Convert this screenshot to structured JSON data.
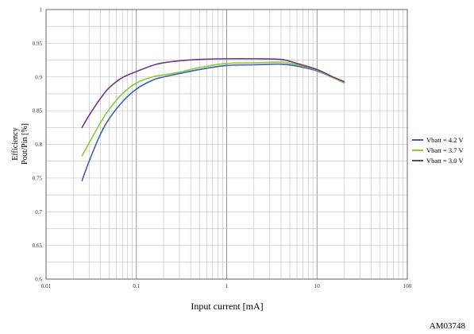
{
  "chart_data": {
    "type": "line",
    "xlabel": "Input current   [mA]",
    "ylabel_lines": [
      "Efficiency",
      "Pout/Pin [%]"
    ],
    "x_scale": "log",
    "xlim": [
      0.01,
      100
    ],
    "ylim": [
      0.6,
      1
    ],
    "x_ticks": [
      0.01,
      0.1,
      1,
      10,
      100
    ],
    "x_tick_labels": [
      "0.01",
      "0.1",
      "1",
      "10",
      "100"
    ],
    "y_ticks": [
      0.6,
      0.65,
      0.7,
      0.75,
      0.8,
      0.85,
      0.9,
      0.95,
      1
    ],
    "y_tick_labels": [
      "0.6",
      "0.65",
      "0.7",
      "0.75",
      "0.8",
      "0.85",
      "0.9",
      "0.95",
      "1"
    ],
    "grid": true,
    "legend_position": "right",
    "code": "AM03748",
    "series": [
      {
        "name": "Vbatt = 4.2 V",
        "color": "#3f5fa8",
        "points": [
          [
            0.025,
            0.746
          ],
          [
            0.03,
            0.775
          ],
          [
            0.04,
            0.815
          ],
          [
            0.05,
            0.838
          ],
          [
            0.07,
            0.863
          ],
          [
            0.1,
            0.882
          ],
          [
            0.15,
            0.895
          ],
          [
            0.2,
            0.9
          ],
          [
            0.3,
            0.905
          ],
          [
            0.5,
            0.911
          ],
          [
            1,
            0.917
          ],
          [
            2,
            0.918
          ],
          [
            4,
            0.919
          ],
          [
            6,
            0.916
          ],
          [
            10,
            0.909
          ],
          [
            15,
            0.899
          ],
          [
            20,
            0.892
          ]
        ]
      },
      {
        "name": "Vbatt = 3.7 V",
        "color": "#8dc63f",
        "points": [
          [
            0.025,
            0.783
          ],
          [
            0.03,
            0.802
          ],
          [
            0.04,
            0.832
          ],
          [
            0.05,
            0.852
          ],
          [
            0.07,
            0.875
          ],
          [
            0.1,
            0.891
          ],
          [
            0.15,
            0.9
          ],
          [
            0.2,
            0.903
          ],
          [
            0.3,
            0.907
          ],
          [
            0.5,
            0.914
          ],
          [
            1,
            0.92
          ],
          [
            2,
            0.921
          ],
          [
            4,
            0.922
          ],
          [
            6,
            0.918
          ],
          [
            10,
            0.91
          ],
          [
            15,
            0.899
          ],
          [
            20,
            0.891
          ]
        ]
      },
      {
        "name": "Vbatt = 3.0  V",
        "color": "#6a3a8f",
        "points": [
          [
            0.025,
            0.825
          ],
          [
            0.03,
            0.843
          ],
          [
            0.04,
            0.868
          ],
          [
            0.05,
            0.884
          ],
          [
            0.07,
            0.899
          ],
          [
            0.1,
            0.908
          ],
          [
            0.15,
            0.917
          ],
          [
            0.2,
            0.921
          ],
          [
            0.3,
            0.924
          ],
          [
            0.5,
            0.926
          ],
          [
            1,
            0.927
          ],
          [
            2,
            0.927
          ],
          [
            4,
            0.926
          ],
          [
            6,
            0.92
          ],
          [
            10,
            0.911
          ],
          [
            15,
            0.9
          ],
          [
            20,
            0.893
          ]
        ]
      }
    ]
  }
}
